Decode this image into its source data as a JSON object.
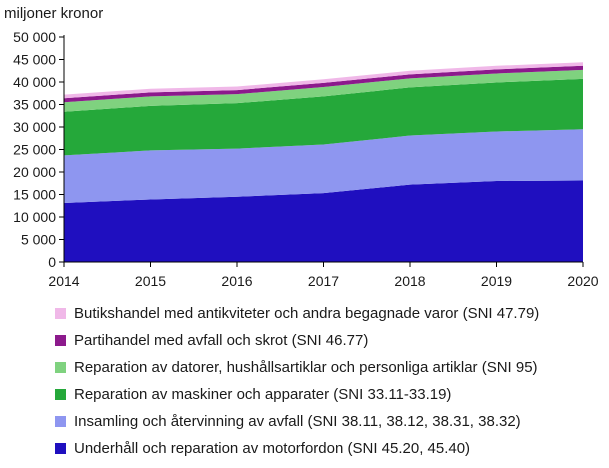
{
  "chart_data": {
    "type": "area",
    "stacked": true,
    "ylabel": "miljoner kronor",
    "xlabel": "",
    "title": "",
    "x": [
      2014,
      2015,
      2016,
      2017,
      2018,
      2019,
      2020
    ],
    "ylim": [
      0,
      50000
    ],
    "yticks": [
      0,
      5000,
      10000,
      15000,
      20000,
      25000,
      30000,
      35000,
      40000,
      45000,
      50000
    ],
    "ytick_labels": [
      "0",
      "5 000",
      "10 000",
      "15 000",
      "20 000",
      "25 000",
      "30 000",
      "35 000",
      "40 000",
      "45 000",
      "50 000"
    ],
    "grid": false,
    "legend_position": "bottom",
    "series": [
      {
        "name": "Underhåll och reparation av motorfordon (SNI 45.20, 45.40)",
        "color": "#1f0fbf",
        "values": [
          13100,
          13900,
          14500,
          15300,
          17200,
          18000,
          18100
        ]
      },
      {
        "name": "Insamling och återvinning av avfall (SNI 38.11, 38.12, 38.31, 38.32)",
        "color": "#8e96f0",
        "values": [
          10600,
          10900,
          10700,
          10800,
          10900,
          11000,
          11400
        ]
      },
      {
        "name": "Reparation av maskiner och apparater (SNI 33.11-33.19)",
        "color": "#25a83a",
        "values": [
          9700,
          9900,
          10100,
          10700,
          10700,
          10900,
          11200
        ]
      },
      {
        "name": "Reparation av datorer, hushållsartiklar och personliga artiklar (SNI 95)",
        "color": "#7fd27f",
        "values": [
          2100,
          2100,
          2000,
          2100,
          2000,
          2000,
          2000
        ]
      },
      {
        "name": "Partihandel med avfall och skrot (SNI 46.77)",
        "color": "#8c1a8c",
        "values": [
          900,
          900,
          900,
          900,
          900,
          900,
          900
        ]
      },
      {
        "name": "Butikshandel med antikviteter och andra begagnade varor (SNI 47.79)",
        "color": "#f0b8e8",
        "values": [
          800,
          800,
          800,
          800,
          800,
          800,
          800
        ]
      }
    ]
  }
}
